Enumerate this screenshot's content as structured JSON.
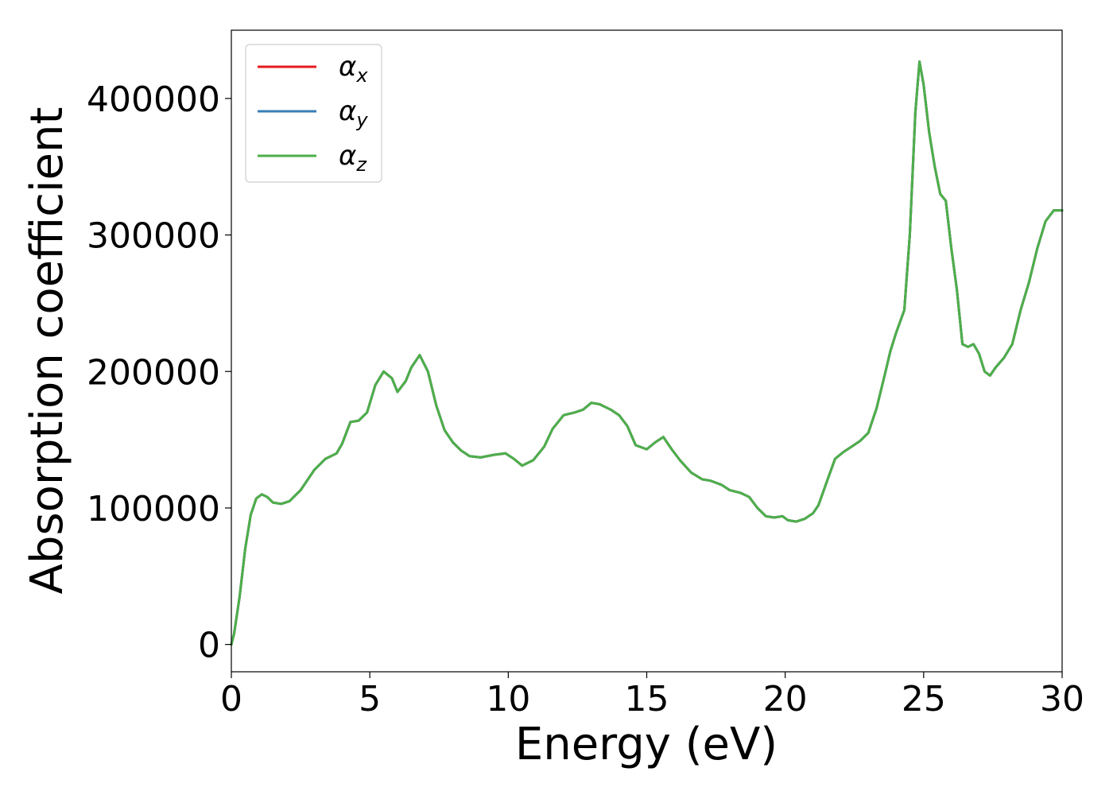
{
  "chart_data": {
    "type": "line",
    "xlabel": "Energy (eV)",
    "ylabel": "Absorption coefficient",
    "xlim": [
      0,
      30
    ],
    "ylim": [
      -20000,
      450000
    ],
    "xticks": [
      0,
      5,
      10,
      15,
      20,
      25,
      30
    ],
    "xtick_labels": [
      "0",
      "5",
      "10",
      "15",
      "20",
      "25",
      "30"
    ],
    "yticks": [
      0,
      100000,
      200000,
      300000,
      400000
    ],
    "ytick_labels": [
      "0",
      "100000",
      "200000",
      "300000",
      "400000"
    ],
    "grid": false,
    "legend_position": "top-left",
    "series": [
      {
        "name": "αx",
        "symbol": "α",
        "subscript": "x",
        "color": "#e41a1c",
        "x": [
          0,
          0.1,
          0.3,
          0.5,
          0.7,
          0.9,
          1.1,
          1.3,
          1.5,
          1.8,
          2.1,
          2.5,
          3.0,
          3.4,
          3.8,
          4.0,
          4.3,
          4.6,
          4.9,
          5.2,
          5.5,
          5.8,
          6.0,
          6.3,
          6.5,
          6.8,
          7.1,
          7.4,
          7.7,
          8.0,
          8.3,
          8.6,
          9.0,
          9.5,
          9.9,
          10.2,
          10.5,
          10.9,
          11.3,
          11.6,
          12.0,
          12.4,
          12.7,
          13.0,
          13.3,
          13.7,
          14.0,
          14.3,
          14.6,
          15.0,
          15.3,
          15.6,
          15.9,
          16.2,
          16.6,
          17.0,
          17.3,
          17.7,
          18.0,
          18.4,
          18.7,
          19.0,
          19.3,
          19.6,
          19.9,
          20.1,
          20.4,
          20.7,
          21.0,
          21.2,
          21.5,
          21.8,
          22.1,
          22.4,
          22.7,
          23.0,
          23.3,
          23.6,
          23.8,
          24.0,
          24.3,
          24.5,
          24.7,
          24.85,
          25.0,
          25.2,
          25.4,
          25.6,
          25.8,
          26.0,
          26.2,
          26.4,
          26.6,
          26.8,
          27.0,
          27.2,
          27.4,
          27.6,
          27.9,
          28.2,
          28.5,
          28.8,
          29.1,
          29.4,
          29.7,
          30.0
        ],
        "values": [
          0,
          8000,
          35000,
          70000,
          95000,
          107000,
          110000,
          108000,
          104000,
          103000,
          105000,
          113000,
          128000,
          136000,
          140000,
          147000,
          163000,
          164000,
          170000,
          190000,
          200000,
          195000,
          185000,
          193000,
          203000,
          212000,
          200000,
          175000,
          157000,
          148000,
          142000,
          138000,
          137000,
          139000,
          140000,
          136000,
          131000,
          135000,
          145000,
          158000,
          168000,
          170000,
          172000,
          177000,
          176000,
          172000,
          168000,
          160000,
          146000,
          143000,
          148000,
          152000,
          143000,
          135000,
          126000,
          121000,
          120000,
          117000,
          113000,
          111000,
          108000,
          100000,
          94000,
          93000,
          94000,
          91000,
          90000,
          92000,
          96000,
          102000,
          119000,
          136000,
          141000,
          145000,
          149000,
          155000,
          173000,
          198000,
          215000,
          228000,
          245000,
          300000,
          390000,
          427000,
          410000,
          375000,
          350000,
          330000,
          325000,
          290000,
          260000,
          220000,
          218000,
          220000,
          213000,
          200000,
          197000,
          203000,
          210000,
          220000,
          245000,
          265000,
          290000,
          310000,
          318000,
          318000
        ]
      },
      {
        "name": "αy",
        "symbol": "α",
        "subscript": "y",
        "color": "#377eb8",
        "same_as": "αx"
      },
      {
        "name": "αz",
        "symbol": "α",
        "subscript": "z",
        "color": "#4daf4a",
        "same_as": "αx"
      }
    ]
  }
}
